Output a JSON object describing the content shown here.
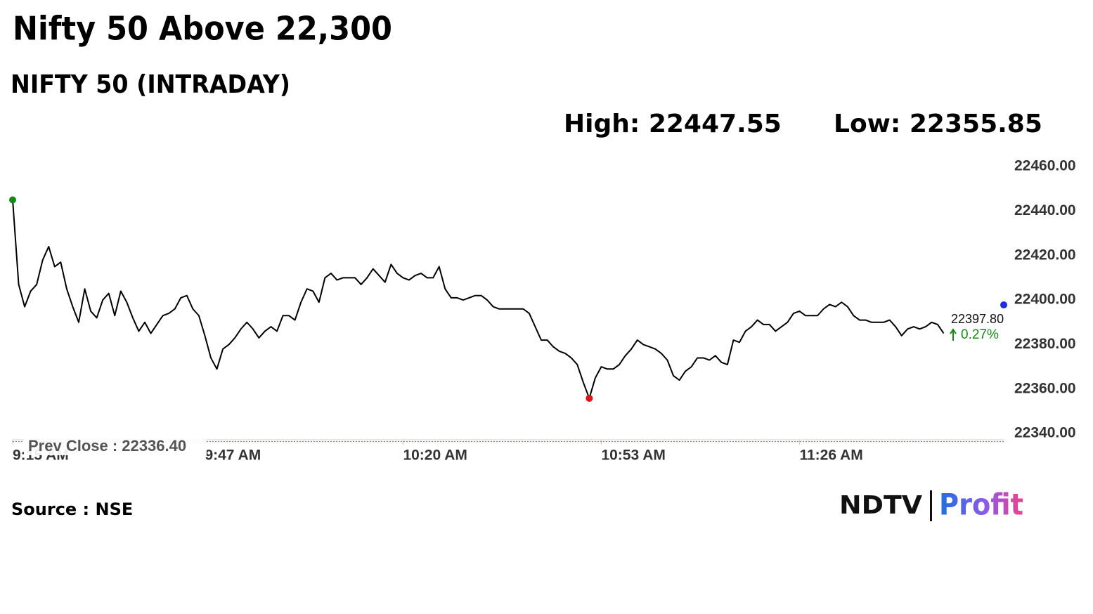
{
  "chart_data": {
    "type": "line",
    "title": "Nifty 50 Above 22,300",
    "subtitle": "NIFTY 50 (INTRADAY)",
    "high": {
      "label": "High:",
      "value": 22447.55
    },
    "low": {
      "label": "Low:",
      "value": 22355.85
    },
    "x": [
      555,
      556,
      557,
      558,
      559,
      560,
      561,
      562,
      563,
      564,
      565,
      566,
      567,
      568,
      569,
      570,
      571,
      572,
      573,
      574,
      575,
      576,
      577,
      578,
      579,
      580,
      581,
      582,
      583,
      584,
      585,
      586,
      587,
      588,
      589,
      590,
      591,
      592,
      593,
      594,
      595,
      596,
      597,
      598,
      599,
      600,
      601,
      602,
      603,
      604,
      605,
      606,
      607,
      608,
      609,
      610,
      611,
      612,
      613,
      614,
      615,
      616,
      617,
      618,
      619,
      620,
      621,
      622,
      623,
      624,
      625,
      626,
      627,
      628,
      629,
      630,
      631,
      632,
      633,
      634,
      635,
      636,
      637,
      638,
      639,
      640,
      641,
      642,
      643,
      644,
      645,
      646,
      647,
      648,
      649,
      650,
      651,
      652,
      653,
      654,
      655,
      656,
      657,
      658,
      659,
      660,
      661,
      662,
      663,
      664,
      665,
      666,
      667,
      668,
      669,
      670,
      671,
      672,
      673,
      674,
      675,
      676,
      677,
      678,
      679,
      680,
      681,
      682,
      683,
      684,
      685,
      686,
      687,
      688,
      689,
      690,
      691,
      692,
      693,
      694,
      695,
      696,
      697,
      698,
      699,
      700,
      701,
      702,
      703,
      704,
      705,
      706,
      707,
      708,
      709,
      710,
      719,
      720
    ],
    "series": [
      {
        "color": "#000000",
        "values": [
          22445,
          22407,
          22397,
          22404,
          22407,
          22418,
          22424,
          22415,
          22417,
          22405,
          22397,
          22390,
          22405,
          22395,
          22392,
          22400,
          22403,
          22393,
          22404,
          22399,
          22392,
          22386,
          22390,
          22385,
          22389,
          22393,
          22394,
          22396,
          22401,
          22402,
          22396,
          22393,
          22384,
          22374,
          22369,
          22378,
          22380,
          22383,
          22387,
          22390,
          22387,
          22383,
          22386,
          22388,
          22386,
          22393,
          22393,
          22391,
          22399,
          22405,
          22404,
          22399,
          22410,
          22412,
          22409,
          22410,
          22410,
          22410,
          22407,
          22410,
          22414,
          22411,
          22408,
          22416,
          22412,
          22410,
          22409,
          22411,
          22412,
          22410,
          22410,
          22415,
          22405,
          22401,
          22401,
          22400,
          22401,
          22402,
          22402,
          22400,
          22397,
          22396,
          22396,
          22396,
          22396,
          22396,
          22394,
          22388,
          22382,
          22382,
          22379,
          22377,
          22376,
          22374,
          22371,
          22363,
          22355.85,
          22365,
          22370,
          22369,
          22369,
          22371,
          22375,
          22378,
          22382,
          22380,
          22379,
          22378,
          22376,
          22373,
          22366,
          22364,
          22368,
          22370,
          22374,
          22374,
          22373,
          22375,
          22372,
          22371,
          22382,
          22381,
          22386,
          22388,
          22391,
          22389,
          22389,
          22386,
          22388,
          22390,
          22394,
          22395,
          22393,
          22393,
          22393,
          22396,
          22398,
          22397,
          22399,
          22397,
          22393,
          22391,
          22391,
          22390,
          22390,
          22390,
          22391,
          22388,
          22384,
          22387,
          22388,
          22387,
          22388,
          22390,
          22389,
          22385,
          null,
          22397.8
        ]
      }
    ],
    "marker_colors": {
      "high": "#148a14",
      "low": "#e8101a",
      "last": "#1f2fd6"
    },
    "xlim": [
      555,
      720
    ],
    "xticks": [
      {
        "value": 555,
        "label": "9:15 AM"
      },
      {
        "value": 587,
        "label": "9:47 AM"
      },
      {
        "value": 620,
        "label": "10:20 AM"
      },
      {
        "value": 653,
        "label": "10:53 AM"
      },
      {
        "value": 686,
        "label": "11:26 AM"
      }
    ],
    "ylim": [
      22335,
      22460
    ],
    "yticks": [
      {
        "value": 22460,
        "label": "22460.00"
      },
      {
        "value": 22440,
        "label": "22440.00"
      },
      {
        "value": 22420,
        "label": "22420.00"
      },
      {
        "value": 22400,
        "label": "22400.00"
      },
      {
        "value": 22380,
        "label": "22380.00"
      },
      {
        "value": 22360,
        "label": "22360.00"
      },
      {
        "value": 22340,
        "label": "22340.00"
      }
    ],
    "prev_close": {
      "label": "Prev Close :",
      "value": 22336.4,
      "value_label": "22336.40"
    },
    "last_price": {
      "value": 22397.8,
      "label": "22397.80"
    },
    "change": {
      "value": 0.27,
      "label": "0.27%"
    },
    "source": "Source : NSE",
    "logo": {
      "left": "NDTV",
      "right": "Profit"
    }
  }
}
